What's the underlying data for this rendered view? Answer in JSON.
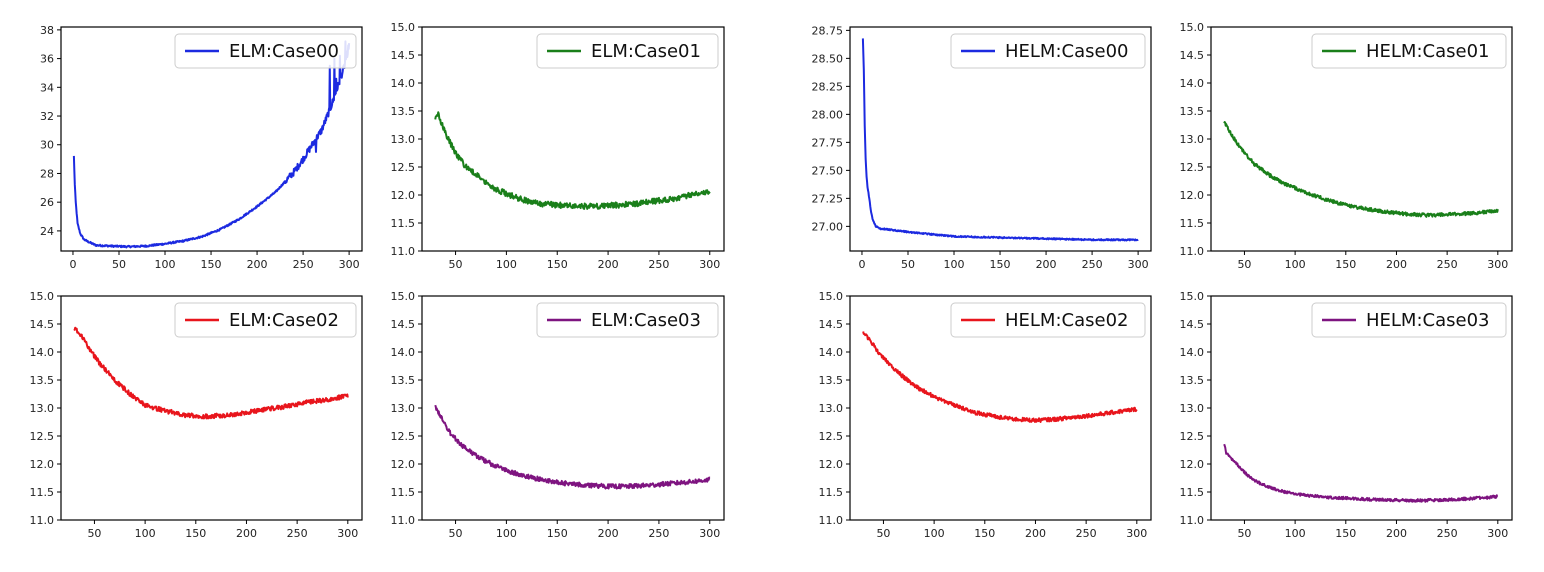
{
  "figure": {
    "layout": "2x4 grid of line plots"
  },
  "chart_data": [
    {
      "type": "line",
      "legend_location": "upper-right",
      "xlim": [
        -13,
        314
      ],
      "ylim": [
        22.6,
        38.2
      ],
      "xticks": [
        0,
        50,
        100,
        150,
        200,
        250,
        300
      ],
      "yticks": [
        24,
        26,
        28,
        30,
        32,
        34,
        36,
        38
      ],
      "series": [
        {
          "name": "ELM:Case00",
          "color": "#1c2ae0",
          "noise": 0.06,
          "x": [
            1,
            2,
            3,
            5,
            8,
            12,
            18,
            25,
            40,
            60,
            80,
            100,
            120,
            140,
            160,
            180,
            200,
            220,
            240,
            250,
            260,
            270,
            275,
            280,
            285,
            290,
            295,
            300
          ],
          "y": [
            29.2,
            27.2,
            26.0,
            24.5,
            23.8,
            23.4,
            23.2,
            23.0,
            22.95,
            22.9,
            22.95,
            23.1,
            23.3,
            23.6,
            24.1,
            24.8,
            25.7,
            26.7,
            28.1,
            29.0,
            30.0,
            31.0,
            31.8,
            32.6,
            33.5,
            34.5,
            35.5,
            37.0
          ],
          "spikes": [
            [
              264,
              29.5
            ],
            [
              279,
              35.5
            ],
            [
              284,
              36.0
            ],
            [
              286,
              34.6
            ],
            [
              290,
              36.2
            ],
            [
              296,
              37.2
            ],
            [
              298,
              36.1
            ]
          ]
        }
      ]
    },
    {
      "type": "line",
      "legend_location": "upper-right",
      "xlim": [
        17,
        314
      ],
      "ylim": [
        11.0,
        15.0
      ],
      "xticks": [
        50,
        100,
        150,
        200,
        250,
        300
      ],
      "yticks": [
        11.0,
        11.5,
        12.0,
        12.5,
        13.0,
        13.5,
        14.0,
        14.5,
        15.0
      ],
      "series": [
        {
          "name": "ELM:Case01",
          "color": "#1a7f1a",
          "noise": 0.05,
          "x": [
            30,
            33,
            40,
            50,
            60,
            75,
            90,
            110,
            130,
            150,
            170,
            190,
            210,
            230,
            250,
            270,
            290,
            300
          ],
          "y": [
            13.35,
            13.45,
            13.1,
            12.75,
            12.5,
            12.3,
            12.1,
            11.95,
            11.85,
            11.82,
            11.8,
            11.8,
            11.82,
            11.85,
            11.9,
            11.95,
            12.05,
            12.05
          ]
        }
      ]
    },
    {
      "type": "line",
      "legend_location": "upper-right",
      "xlim": [
        -13,
        314
      ],
      "ylim": [
        26.78,
        28.78
      ],
      "xticks": [
        0,
        50,
        100,
        150,
        200,
        250,
        300
      ],
      "yticks": [
        27.0,
        27.25,
        27.5,
        27.75,
        28.0,
        28.25,
        28.5,
        28.75
      ],
      "series": [
        {
          "name": "HELM:Case00",
          "color": "#1c2ae0",
          "noise": 0.006,
          "x": [
            1,
            2,
            3,
            4,
            5,
            6,
            8,
            10,
            12,
            15,
            20,
            30,
            50,
            75,
            100,
            150,
            200,
            250,
            300
          ],
          "y": [
            28.68,
            28.4,
            27.9,
            27.6,
            27.45,
            27.35,
            27.25,
            27.12,
            27.05,
            27.0,
            26.98,
            26.97,
            26.95,
            26.93,
            26.91,
            26.9,
            26.89,
            26.88,
            26.88
          ]
        }
      ]
    },
    {
      "type": "line",
      "legend_location": "upper-right",
      "xlim": [
        17,
        314
      ],
      "ylim": [
        11.0,
        15.0
      ],
      "xticks": [
        50,
        100,
        150,
        200,
        250,
        300
      ],
      "yticks": [
        11.0,
        11.5,
        12.0,
        12.5,
        13.0,
        13.5,
        14.0,
        14.5,
        15.0
      ],
      "series": [
        {
          "name": "HELM:Case01",
          "color": "#1a7f1a",
          "noise": 0.03,
          "x": [
            30,
            40,
            50,
            60,
            75,
            90,
            110,
            130,
            150,
            170,
            190,
            210,
            230,
            250,
            270,
            290,
            300
          ],
          "y": [
            13.3,
            13.0,
            12.75,
            12.55,
            12.35,
            12.2,
            12.05,
            11.92,
            11.82,
            11.75,
            11.7,
            11.66,
            11.64,
            11.65,
            11.67,
            11.7,
            11.72
          ]
        }
      ]
    },
    {
      "type": "line",
      "legend_location": "upper-right",
      "xlim": [
        17,
        314
      ],
      "ylim": [
        11.0,
        15.0
      ],
      "xticks": [
        50,
        100,
        150,
        200,
        250,
        300
      ],
      "yticks": [
        11.0,
        11.5,
        12.0,
        12.5,
        13.0,
        13.5,
        14.0,
        14.5,
        15.0
      ],
      "series": [
        {
          "name": "ELM:Case02",
          "color": "#e8151c",
          "noise": 0.04,
          "x": [
            30,
            35,
            45,
            55,
            70,
            85,
            100,
            120,
            140,
            160,
            180,
            200,
            220,
            240,
            260,
            280,
            300
          ],
          "y": [
            14.42,
            14.35,
            14.05,
            13.8,
            13.5,
            13.25,
            13.05,
            12.95,
            12.87,
            12.85,
            12.87,
            12.92,
            12.98,
            13.03,
            13.1,
            13.15,
            13.22
          ]
        }
      ]
    },
    {
      "type": "line",
      "legend_location": "upper-right",
      "xlim": [
        17,
        314
      ],
      "ylim": [
        11.0,
        15.0
      ],
      "xticks": [
        50,
        100,
        150,
        200,
        250,
        300
      ],
      "yticks": [
        11.0,
        11.5,
        12.0,
        12.5,
        13.0,
        13.5,
        14.0,
        14.5,
        15.0
      ],
      "series": [
        {
          "name": "ELM:Case03",
          "color": "#7e1480",
          "noise": 0.04,
          "x": [
            30,
            35,
            45,
            55,
            70,
            85,
            100,
            120,
            140,
            160,
            180,
            200,
            220,
            240,
            260,
            280,
            300
          ],
          "y": [
            13.02,
            12.85,
            12.55,
            12.35,
            12.15,
            12.0,
            11.88,
            11.78,
            11.7,
            11.65,
            11.62,
            11.6,
            11.6,
            11.62,
            11.65,
            11.68,
            11.72
          ]
        }
      ]
    },
    {
      "type": "line",
      "legend_location": "upper-right",
      "xlim": [
        17,
        314
      ],
      "ylim": [
        11.0,
        15.0
      ],
      "xticks": [
        50,
        100,
        150,
        200,
        250,
        300
      ],
      "yticks": [
        11.0,
        11.5,
        12.0,
        12.5,
        13.0,
        13.5,
        14.0,
        14.5,
        15.0
      ],
      "series": [
        {
          "name": "HELM:Case02",
          "color": "#e8151c",
          "noise": 0.035,
          "x": [
            30,
            35,
            45,
            55,
            70,
            85,
            100,
            120,
            140,
            160,
            180,
            200,
            220,
            240,
            260,
            280,
            300
          ],
          "y": [
            14.35,
            14.25,
            14.0,
            13.8,
            13.55,
            13.35,
            13.2,
            13.05,
            12.92,
            12.85,
            12.8,
            12.78,
            12.8,
            12.84,
            12.88,
            12.93,
            12.98
          ]
        }
      ]
    },
    {
      "type": "line",
      "legend_location": "upper-right",
      "xlim": [
        17,
        314
      ],
      "ylim": [
        11.0,
        15.0
      ],
      "xticks": [
        50,
        100,
        150,
        200,
        250,
        300
      ],
      "yticks": [
        11.0,
        11.5,
        12.0,
        12.5,
        13.0,
        13.5,
        14.0,
        14.5,
        15.0
      ],
      "series": [
        {
          "name": "HELM:Case03",
          "color": "#7e1480",
          "noise": 0.025,
          "x": [
            30,
            32,
            40,
            50,
            60,
            75,
            90,
            110,
            130,
            150,
            170,
            190,
            210,
            230,
            250,
            270,
            290,
            300
          ],
          "y": [
            12.35,
            12.2,
            12.05,
            11.85,
            11.7,
            11.58,
            11.5,
            11.44,
            11.41,
            11.39,
            11.37,
            11.36,
            11.35,
            11.35,
            11.36,
            11.38,
            11.4,
            11.42
          ]
        }
      ]
    }
  ]
}
